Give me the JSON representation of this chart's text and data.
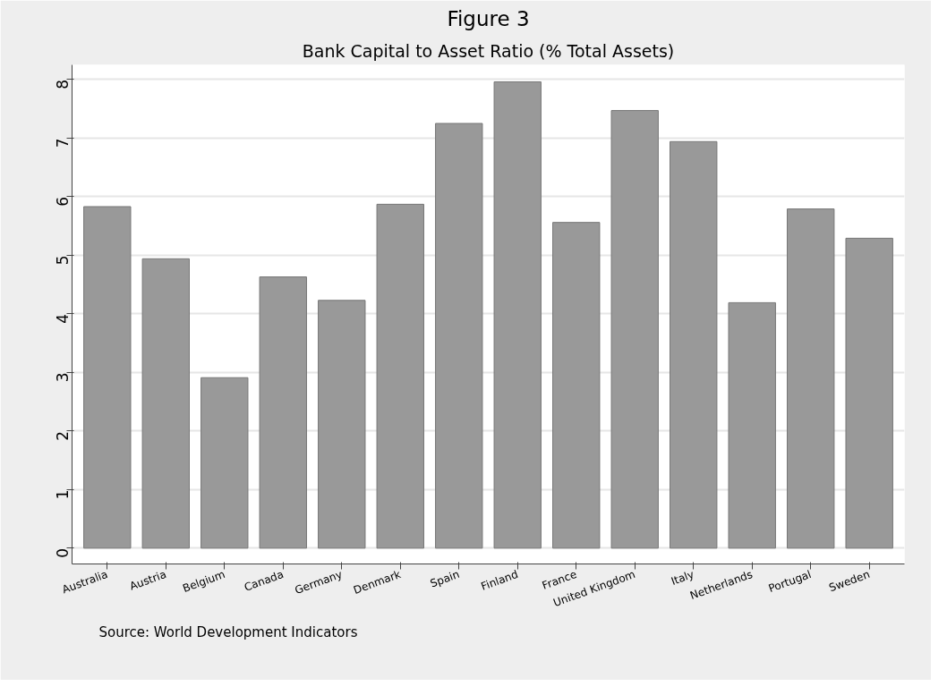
{
  "chart_data": {
    "type": "bar",
    "title": "Figure 3",
    "subtitle": "Bank Capital to Asset Ratio (% Total Assets)",
    "categories": [
      "Australia",
      "Austria",
      "Belgium",
      "Canada",
      "Germany",
      "Denmark",
      "Spain",
      "Finland",
      "France",
      "United Kingdom",
      "Italy",
      "Netherlands",
      "Portugal",
      "Sweden"
    ],
    "values": [
      5.83,
      4.94,
      2.91,
      4.63,
      4.23,
      5.87,
      7.25,
      7.96,
      5.56,
      7.47,
      6.94,
      4.19,
      5.79,
      5.29
    ],
    "color": "#999999",
    "ylim": [
      -0.27,
      8.25
    ],
    "yticks": [
      0,
      1,
      2,
      3,
      4,
      5,
      6,
      7,
      8
    ],
    "grid": "y",
    "annotations": [
      "Source: World Development Indicators"
    ]
  }
}
